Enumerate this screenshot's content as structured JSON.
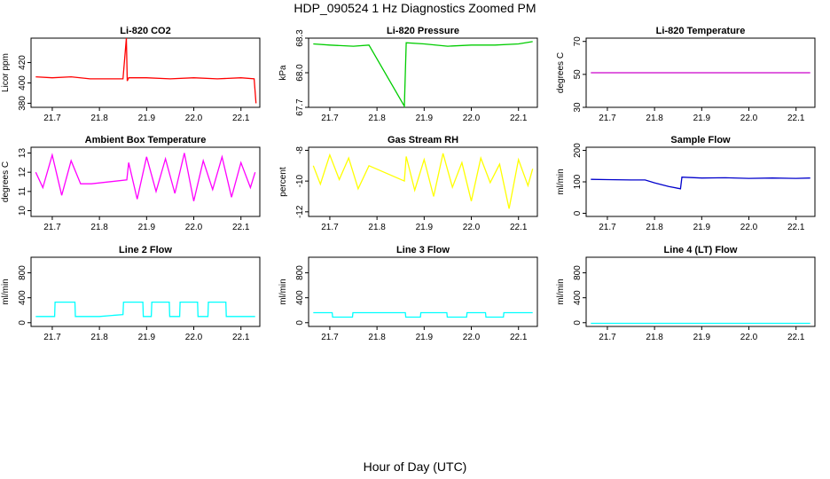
{
  "figure": {
    "title": "HDP_090524  1 Hz Diagnostics Zoomed PM",
    "xlabel": "Hour of Day (UTC)"
  },
  "chart_data": [
    {
      "type": "line",
      "title": "Li-820 CO2",
      "ylabel": "Licor ppm",
      "xlim": [
        21.655,
        22.14
      ],
      "ylim": [
        376,
        444
      ],
      "xticks": [
        "21.7",
        "21.8",
        "21.9",
        "22.0",
        "22.1"
      ],
      "yticks": [
        "380",
        "400",
        "420"
      ],
      "color": "#ff0000",
      "x": [
        21.665,
        21.7,
        21.74,
        21.78,
        21.8,
        21.85,
        21.857,
        21.859,
        21.862,
        21.9,
        21.95,
        22.0,
        22.05,
        22.1,
        22.128,
        22.132
      ],
      "y": [
        406,
        405,
        406,
        404,
        404,
        404,
        444,
        402,
        405,
        405,
        404,
        405,
        404,
        405,
        404,
        380
      ]
    },
    {
      "type": "line",
      "title": "Li-820 Pressure",
      "ylabel": "kPa",
      "xlim": [
        21.655,
        22.14
      ],
      "ylim": [
        67.7,
        68.3
      ],
      "xticks": [
        "21.7",
        "21.8",
        "21.9",
        "22.0",
        "22.1"
      ],
      "yticks": [
        "67.7",
        "68.0",
        "68.3"
      ],
      "color": "#00cc00",
      "x": [
        21.665,
        21.7,
        21.75,
        21.783,
        21.858,
        21.862,
        21.9,
        21.95,
        22.0,
        22.05,
        22.1,
        22.13
      ],
      "y": [
        68.25,
        68.24,
        68.23,
        68.24,
        67.71,
        68.26,
        68.25,
        68.23,
        68.24,
        68.24,
        68.25,
        68.27
      ]
    },
    {
      "type": "line",
      "title": "Li-820 Temperature",
      "ylabel": "degrees C",
      "xlim": [
        21.655,
        22.14
      ],
      "ylim": [
        30,
        72
      ],
      "xticks": [
        "21.7",
        "21.8",
        "21.9",
        "22.0",
        "22.1"
      ],
      "yticks": [
        "30",
        "50",
        "70"
      ],
      "color": "#cc00cc",
      "x": [
        21.665,
        22.13
      ],
      "y": [
        51,
        51
      ]
    },
    {
      "type": "line",
      "title": "Ambient Box Temperature",
      "ylabel": "degrees C",
      "xlim": [
        21.655,
        22.14
      ],
      "ylim": [
        9.7,
        13.3
      ],
      "xticks": [
        "21.7",
        "21.8",
        "21.9",
        "22.0",
        "22.1"
      ],
      "yticks": [
        "10",
        "11",
        "12",
        "13"
      ],
      "color": "#ff00ff",
      "x": [
        21.665,
        21.68,
        21.7,
        21.72,
        21.74,
        21.76,
        21.783,
        21.858,
        21.862,
        21.88,
        21.9,
        21.92,
        21.94,
        21.96,
        21.98,
        22.0,
        22.02,
        22.04,
        22.06,
        22.08,
        22.1,
        22.12,
        22.13
      ],
      "y": [
        12.0,
        11.2,
        12.9,
        10.8,
        12.6,
        11.4,
        11.4,
        11.6,
        12.5,
        10.6,
        12.8,
        11.0,
        12.7,
        10.9,
        13.0,
        10.5,
        12.6,
        11.1,
        12.8,
        10.7,
        12.5,
        11.2,
        12.0
      ]
    },
    {
      "type": "line",
      "title": "Gas Stream RH",
      "ylabel": "percent",
      "xlim": [
        21.655,
        22.14
      ],
      "ylim": [
        -12.3,
        -7.8
      ],
      "xticks": [
        "21.7",
        "21.8",
        "21.9",
        "22.0",
        "22.1"
      ],
      "yticks": [
        "-8",
        "-10",
        "-12"
      ],
      "color": "#ffff00",
      "x": [
        21.665,
        21.68,
        21.7,
        21.72,
        21.74,
        21.76,
        21.783,
        21.858,
        21.862,
        21.88,
        21.9,
        21.92,
        21.94,
        21.96,
        21.98,
        22.0,
        22.02,
        22.04,
        22.06,
        22.08,
        22.1,
        22.12,
        22.13
      ],
      "y": [
        -9.0,
        -10.2,
        -8.3,
        -9.9,
        -8.5,
        -10.5,
        -9.0,
        -10.0,
        -8.4,
        -10.6,
        -8.6,
        -11.0,
        -8.2,
        -10.4,
        -8.8,
        -11.3,
        -8.5,
        -10.1,
        -8.9,
        -11.8,
        -8.6,
        -10.3,
        -9.2
      ]
    },
    {
      "type": "line",
      "title": "Sample Flow",
      "ylabel": "ml/min",
      "xlim": [
        21.655,
        22.14
      ],
      "ylim": [
        -10,
        210
      ],
      "xticks": [
        "21.7",
        "21.8",
        "21.9",
        "22.0",
        "22.1"
      ],
      "yticks": [
        "0",
        "100",
        "200"
      ],
      "color": "#0000cc",
      "x": [
        21.665,
        21.7,
        21.75,
        21.78,
        21.8,
        21.83,
        21.855,
        21.858,
        21.9,
        21.95,
        22.0,
        22.05,
        22.1,
        22.13
      ],
      "y": [
        108,
        107,
        106,
        106,
        97,
        85,
        78,
        115,
        112,
        113,
        111,
        112,
        111,
        112
      ]
    },
    {
      "type": "line",
      "title": "Line 2 Flow",
      "ylabel": "ml/min",
      "xlim": [
        21.655,
        22.14
      ],
      "ylim": [
        -60,
        1050
      ],
      "xticks": [
        "21.7",
        "21.8",
        "21.9",
        "22.0",
        "22.1"
      ],
      "yticks": [
        "0",
        "400",
        "800"
      ],
      "color": "#00ffff",
      "x": [
        21.665,
        21.705,
        21.706,
        21.748,
        21.749,
        21.8,
        21.85,
        21.851,
        21.892,
        21.893,
        21.91,
        21.911,
        21.948,
        21.949,
        21.97,
        21.971,
        22.008,
        22.009,
        22.03,
        22.031,
        22.068,
        22.069,
        22.13
      ],
      "y": [
        100,
        100,
        330,
        330,
        100,
        100,
        130,
        330,
        330,
        100,
        100,
        330,
        330,
        100,
        100,
        330,
        330,
        100,
        100,
        330,
        330,
        100,
        100
      ]
    },
    {
      "type": "line",
      "title": "Line 3 Flow",
      "ylabel": "ml/min",
      "xlim": [
        21.655,
        22.14
      ],
      "ylim": [
        -60,
        1050
      ],
      "xticks": [
        "21.7",
        "21.8",
        "21.9",
        "22.0",
        "22.1"
      ],
      "yticks": [
        "0",
        "400",
        "800"
      ],
      "color": "#00ffff",
      "x": [
        21.665,
        21.705,
        21.706,
        21.748,
        21.749,
        21.86,
        21.861,
        21.892,
        21.893,
        21.948,
        21.949,
        21.99,
        21.991,
        22.03,
        22.031,
        22.068,
        22.069,
        22.13
      ],
      "y": [
        160,
        160,
        90,
        90,
        160,
        160,
        90,
        90,
        160,
        160,
        90,
        90,
        160,
        160,
        90,
        90,
        160,
        160
      ]
    },
    {
      "type": "line",
      "title": "Line 4 (LT) Flow",
      "ylabel": "ml/min",
      "xlim": [
        21.655,
        22.14
      ],
      "ylim": [
        -60,
        1050
      ],
      "xticks": [
        "21.7",
        "21.8",
        "21.9",
        "22.0",
        "22.1"
      ],
      "yticks": [
        "0",
        "400",
        "800"
      ],
      "color": "#00ffff",
      "x": [
        21.665,
        22.13
      ],
      "y": [
        -10,
        -10
      ]
    }
  ]
}
